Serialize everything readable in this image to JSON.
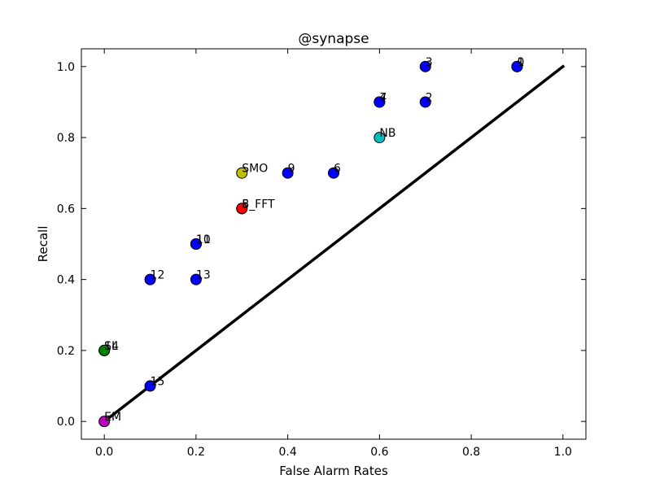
{
  "chart_data": {
    "type": "scatter",
    "title": "@synapse",
    "xlabel": "False Alarm Rates",
    "ylabel": "Recall",
    "xlim": [
      -0.05,
      1.05
    ],
    "ylim": [
      -0.05,
      1.05
    ],
    "xticks": [
      0.0,
      0.2,
      0.4,
      0.6,
      0.8,
      1.0
    ],
    "yticks": [
      0.0,
      0.2,
      0.4,
      0.6,
      0.8,
      1.0
    ],
    "xtick_labels": [
      "0.0",
      "0.2",
      "0.4",
      "0.6",
      "0.8",
      "1.0"
    ],
    "ytick_labels": [
      "0.0",
      "0.2",
      "0.4",
      "0.6",
      "0.8",
      "1.0"
    ],
    "grid": false,
    "reference_line": {
      "x": [
        0.0,
        1.0
      ],
      "y": [
        0.0,
        1.0
      ],
      "color": "#000000"
    },
    "colors": {
      "blue": "#0000ff",
      "green": "#008000",
      "red": "#ff0000",
      "yellow": "#bfbf00",
      "cyan": "#00bfbf",
      "magenta": "#bf00bf"
    },
    "points": [
      {
        "label": "0",
        "x": 0.9,
        "y": 1.0,
        "color": "blue"
      },
      {
        "label": "1",
        "x": 0.9,
        "y": 1.0,
        "color": "blue"
      },
      {
        "label": "3",
        "x": 0.7,
        "y": 1.0,
        "color": "blue"
      },
      {
        "label": "7",
        "x": 0.6,
        "y": 0.9,
        "color": "blue"
      },
      {
        "label": "4",
        "x": 0.6,
        "y": 0.9,
        "color": "blue"
      },
      {
        "label": "2",
        "x": 0.7,
        "y": 0.9,
        "color": "blue"
      },
      {
        "label": "NB",
        "x": 0.6,
        "y": 0.8,
        "color": "cyan"
      },
      {
        "label": "SMO",
        "x": 0.3,
        "y": 0.7,
        "color": "yellow"
      },
      {
        "label": "9",
        "x": 0.4,
        "y": 0.7,
        "color": "blue"
      },
      {
        "label": "6",
        "x": 0.5,
        "y": 0.7,
        "color": "blue"
      },
      {
        "label": "8",
        "x": 0.3,
        "y": 0.6,
        "color": "blue"
      },
      {
        "label": "5_FFT",
        "x": 0.3,
        "y": 0.6,
        "color": "red"
      },
      {
        "label": "10",
        "x": 0.2,
        "y": 0.5,
        "color": "blue"
      },
      {
        "label": "11",
        "x": 0.2,
        "y": 0.5,
        "color": "blue"
      },
      {
        "label": "12",
        "x": 0.1,
        "y": 0.4,
        "color": "blue"
      },
      {
        "label": "13",
        "x": 0.2,
        "y": 0.4,
        "color": "blue"
      },
      {
        "label": "SL",
        "x": 0.0,
        "y": 0.2,
        "color": "green"
      },
      {
        "label": "14",
        "x": 0.0,
        "y": 0.2,
        "color": "green"
      },
      {
        "label": "15",
        "x": 0.1,
        "y": 0.1,
        "color": "blue"
      },
      {
        "label": "EM",
        "x": 0.0,
        "y": 0.0,
        "color": "magenta"
      }
    ]
  }
}
